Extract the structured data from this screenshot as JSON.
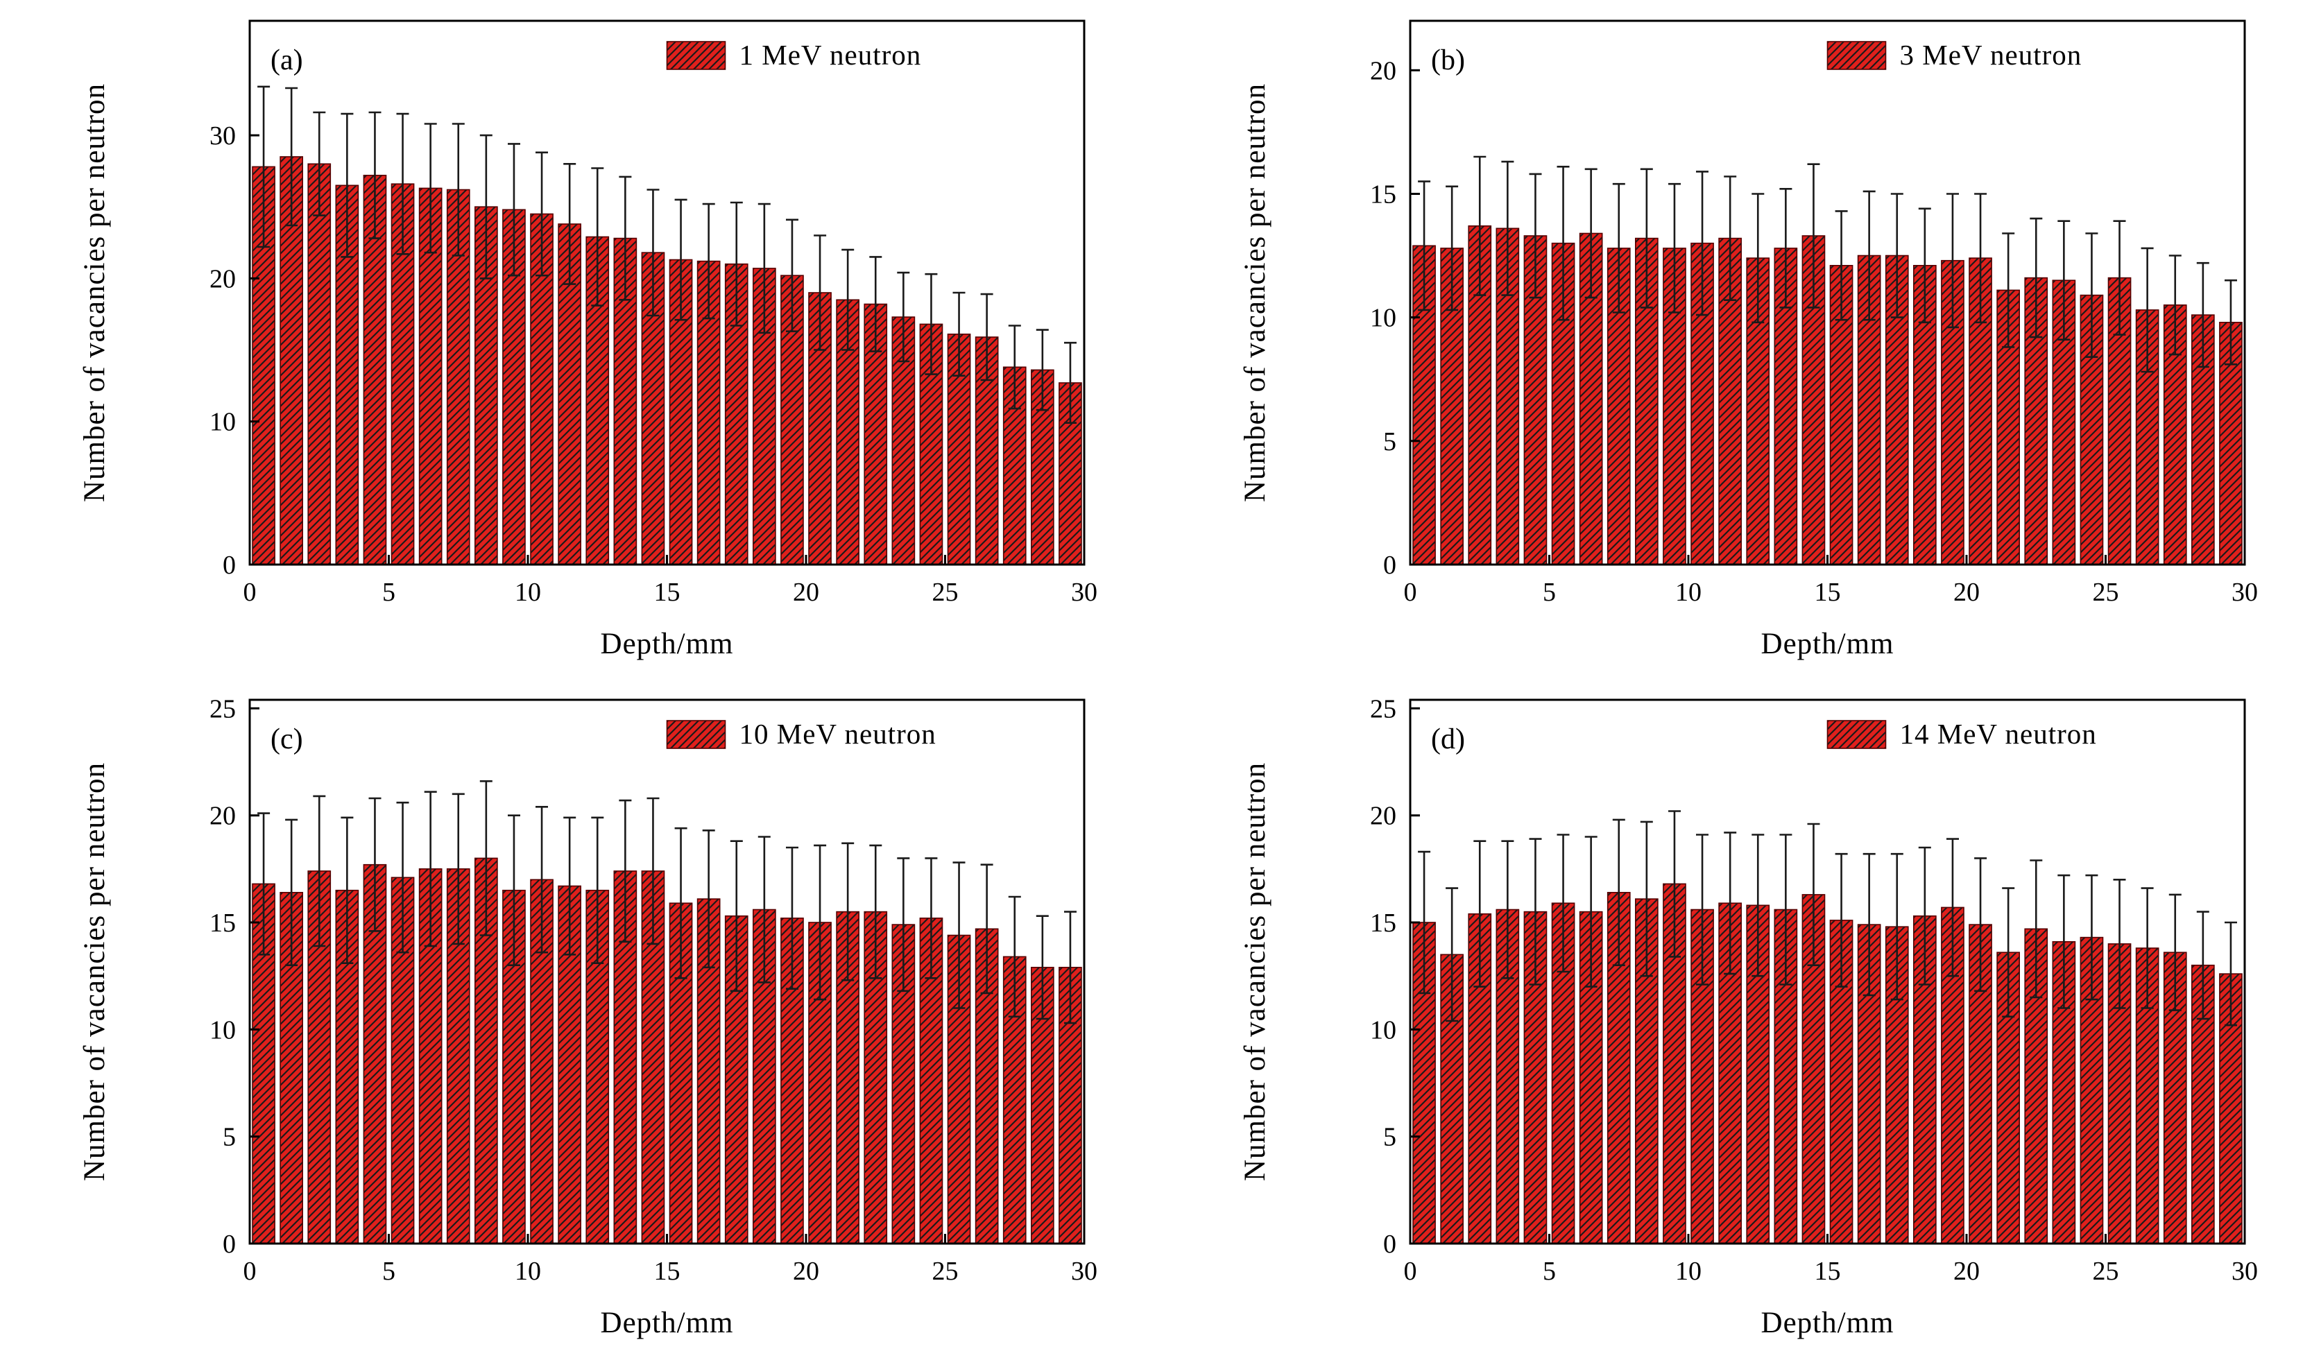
{
  "figure": {
    "background": "#ffffff",
    "bar_color": "#e0201c",
    "bar_edge_color": "#550000",
    "hatch_color": "#1a1a1a",
    "errorbar_color": "#1a1a1a",
    "axis_color": "#000000"
  },
  "chart_data": [
    {
      "type": "bar",
      "panel_label": "(a)",
      "legend_label": "1 MeV neutron",
      "xlabel": "Depth/mm",
      "ylabel": "Number of vacancies per neutron",
      "xlim": [
        0,
        30
      ],
      "ylim": [
        0,
        38
      ],
      "xticks": [
        0,
        5,
        10,
        15,
        20,
        25,
        30
      ],
      "yticks": [
        0,
        10,
        20,
        30
      ],
      "x": {
        "start": 0.5,
        "step": 1,
        "count": 30
      },
      "values": [
        27.8,
        28.5,
        28.0,
        26.5,
        27.2,
        26.6,
        26.3,
        26.2,
        25.0,
        24.8,
        24.5,
        23.8,
        22.9,
        22.8,
        21.8,
        21.3,
        21.2,
        21.0,
        20.7,
        20.2,
        19.0,
        18.5,
        18.2,
        17.3,
        16.8,
        16.1,
        15.9,
        13.8,
        13.6,
        12.7
      ],
      "errors": [
        5.6,
        4.8,
        3.6,
        5.0,
        4.4,
        4.9,
        4.5,
        4.6,
        5.0,
        4.6,
        4.3,
        4.2,
        4.8,
        4.3,
        4.4,
        4.2,
        4.0,
        4.3,
        4.5,
        3.9,
        4.0,
        3.5,
        3.3,
        3.1,
        3.5,
        2.9,
        3.0,
        2.9,
        2.8,
        2.8
      ]
    },
    {
      "type": "bar",
      "panel_label": "(b)",
      "legend_label": "3 MeV neutron",
      "xlabel": "Depth/mm",
      "ylabel": "Number of vacancies per neutron",
      "xlim": [
        0,
        30
      ],
      "ylim": [
        0,
        22
      ],
      "xticks": [
        0,
        5,
        10,
        15,
        20,
        25,
        30
      ],
      "yticks": [
        0,
        5,
        10,
        15,
        20
      ],
      "x": {
        "start": 0.5,
        "step": 1,
        "count": 30
      },
      "values": [
        12.9,
        12.8,
        13.7,
        13.6,
        13.3,
        13.0,
        13.4,
        12.8,
        13.2,
        12.8,
        13.0,
        13.2,
        12.4,
        12.8,
        13.3,
        12.1,
        12.5,
        12.5,
        12.1,
        12.3,
        12.4,
        11.1,
        11.6,
        11.5,
        10.9,
        11.6,
        10.3,
        10.5,
        10.1,
        9.8
      ],
      "errors": [
        2.6,
        2.5,
        2.8,
        2.7,
        2.5,
        3.1,
        2.6,
        2.6,
        2.8,
        2.6,
        2.9,
        2.5,
        2.6,
        2.4,
        2.9,
        2.2,
        2.6,
        2.5,
        2.3,
        2.7,
        2.6,
        2.3,
        2.4,
        2.4,
        2.5,
        2.3,
        2.5,
        2.0,
        2.1,
        1.7
      ]
    },
    {
      "type": "bar",
      "panel_label": "(c)",
      "legend_label": "10 MeV neutron",
      "xlabel": "Depth/mm",
      "ylabel": "Number of vacancies per neutron",
      "xlim": [
        0,
        30
      ],
      "ylim": [
        0,
        25.4
      ],
      "xticks": [
        0,
        5,
        10,
        15,
        20,
        25,
        30
      ],
      "yticks": [
        0,
        5,
        10,
        15,
        20,
        25
      ],
      "x": {
        "start": 0.5,
        "step": 1,
        "count": 30
      },
      "values": [
        16.8,
        16.4,
        17.4,
        16.5,
        17.7,
        17.1,
        17.5,
        17.5,
        18.0,
        16.5,
        17.0,
        16.7,
        16.5,
        17.4,
        17.4,
        15.9,
        16.1,
        15.3,
        15.6,
        15.2,
        15.0,
        15.5,
        15.5,
        14.9,
        15.2,
        14.4,
        14.7,
        13.4,
        12.9,
        12.9
      ],
      "errors": [
        3.3,
        3.4,
        3.5,
        3.4,
        3.1,
        3.5,
        3.6,
        3.5,
        3.6,
        3.5,
        3.4,
        3.2,
        3.4,
        3.3,
        3.4,
        3.5,
        3.2,
        3.5,
        3.4,
        3.3,
        3.6,
        3.2,
        3.1,
        3.1,
        2.8,
        3.4,
        3.0,
        2.8,
        2.4,
        2.6
      ]
    },
    {
      "type": "bar",
      "panel_label": "(d)",
      "legend_label": "14 MeV neutron",
      "xlabel": "Depth/mm",
      "ylabel": "Number of vacancies per neutron",
      "xlim": [
        0,
        30
      ],
      "ylim": [
        0,
        25.4
      ],
      "xticks": [
        0,
        5,
        10,
        15,
        20,
        25,
        30
      ],
      "yticks": [
        0,
        5,
        10,
        15,
        20,
        25
      ],
      "x": {
        "start": 0.5,
        "step": 1,
        "count": 30
      },
      "values": [
        15.0,
        13.5,
        15.4,
        15.6,
        15.5,
        15.9,
        15.5,
        16.4,
        16.1,
        16.8,
        15.6,
        15.9,
        15.8,
        15.6,
        16.3,
        15.1,
        14.9,
        14.8,
        15.3,
        15.7,
        14.9,
        13.6,
        14.7,
        14.1,
        14.3,
        14.0,
        13.8,
        13.6,
        13.0,
        12.6
      ],
      "errors": [
        3.3,
        3.1,
        3.4,
        3.2,
        3.4,
        3.2,
        3.5,
        3.4,
        3.6,
        3.4,
        3.5,
        3.3,
        3.3,
        3.5,
        3.3,
        3.1,
        3.3,
        3.4,
        3.2,
        3.2,
        3.1,
        3.0,
        3.2,
        3.1,
        2.9,
        3.0,
        2.8,
        2.7,
        2.5,
        2.4
      ]
    }
  ]
}
